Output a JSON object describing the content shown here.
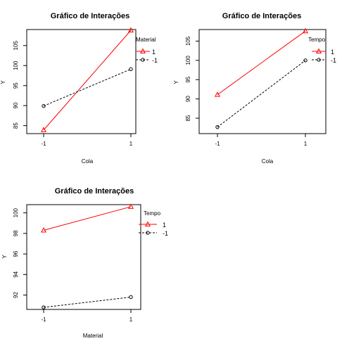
{
  "colors": {
    "level_1": "#ff0000",
    "level_neg1": "#000000",
    "axis": "#000000",
    "background": "#ffffff"
  },
  "chart_data": [
    {
      "type": "line",
      "title": "Gráfico de Interações",
      "xlabel": "Cola",
      "ylabel": "Y",
      "categories": [
        "-1",
        "1"
      ],
      "ylim": [
        83,
        109
      ],
      "yticks": [
        "85",
        "90",
        "95",
        "100",
        "105"
      ],
      "legend": {
        "title": "Material",
        "labels": [
          "1",
          "-1"
        ],
        "position": "top-right"
      },
      "series": [
        {
          "name": "1",
          "values": [
            83.9,
            108.8
          ],
          "color": "#ff0000",
          "line": "solid",
          "marker": "triangle"
        },
        {
          "name": "-1",
          "values": [
            89.9,
            99.1
          ],
          "color": "#000000",
          "line": "dashed",
          "marker": "circle"
        }
      ]
    },
    {
      "type": "line",
      "title": "Gráfico de Interações",
      "xlabel": "Cola",
      "ylabel": "Y",
      "categories": [
        "-1",
        "1"
      ],
      "ylim": [
        81,
        108
      ],
      "yticks": [
        "85",
        "90",
        "95",
        "100",
        "105"
      ],
      "legend": {
        "title": "Tempo",
        "labels": [
          "1",
          "-1"
        ],
        "position": "top-right"
      },
      "series": [
        {
          "name": "1",
          "values": [
            91.1,
            107.6
          ],
          "color": "#ff0000",
          "line": "solid",
          "marker": "triangle"
        },
        {
          "name": "-1",
          "values": [
            82.7,
            100.0
          ],
          "color": "#000000",
          "line": "dashed",
          "marker": "circle"
        }
      ]
    },
    {
      "type": "line",
      "title": "Gráfico de Interações",
      "xlabel": "Material",
      "ylabel": "Y",
      "categories": [
        "-1",
        "1"
      ],
      "ylim": [
        90.6,
        100.8
      ],
      "yticks": [
        "92",
        "94",
        "96",
        "98",
        "100"
      ],
      "legend": {
        "title": "Tempo",
        "labels": [
          "1",
          "-1"
        ],
        "position": "top-right"
      },
      "series": [
        {
          "name": "1",
          "values": [
            98.3,
            100.6
          ],
          "color": "#ff0000",
          "line": "solid",
          "marker": "triangle"
        },
        {
          "name": "-1",
          "values": [
            90.8,
            91.8
          ],
          "color": "#000000",
          "line": "dashed",
          "marker": "circle"
        }
      ]
    }
  ]
}
